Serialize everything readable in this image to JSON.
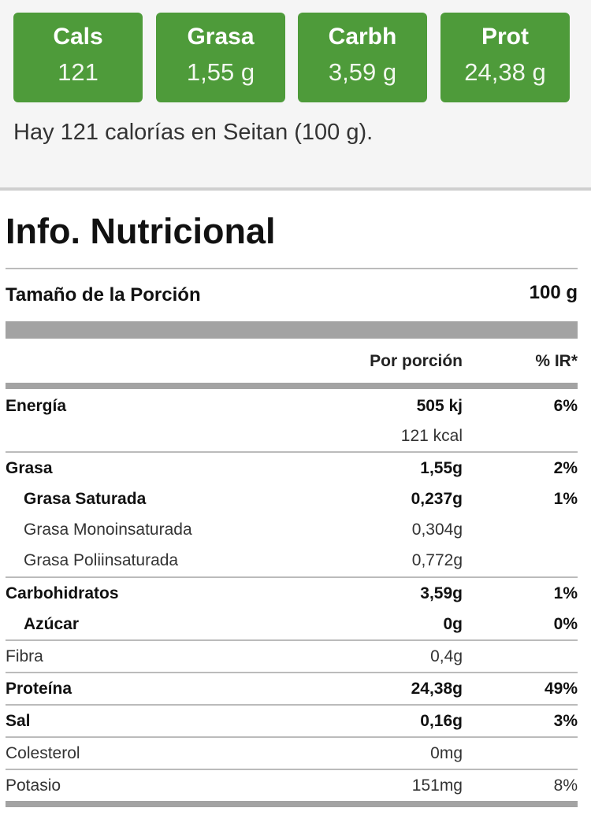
{
  "macros": [
    {
      "label": "Cals",
      "value": "121"
    },
    {
      "label": "Grasa",
      "value": "1,55 g"
    },
    {
      "label": "Carbh",
      "value": "3,59 g"
    },
    {
      "label": "Prot",
      "value": "24,38 g"
    }
  ],
  "summary": "Hay 121 calorías en Seitan (100 g).",
  "nutrition": {
    "title": "Info. Nutricional",
    "serving_label": "Tamaño de la Porción",
    "serving_value": "100 g",
    "col_per_serving": "Por porción",
    "col_ri": "% IR*",
    "rows": [
      {
        "name": "Energía",
        "value": "505 kj",
        "pct": "6%"
      },
      {
        "name": "",
        "value": "121 kcal",
        "pct": ""
      },
      {
        "name": "Grasa",
        "value": "1,55g",
        "pct": "2%"
      },
      {
        "name": "Grasa Saturada",
        "value": "0,237g",
        "pct": "1%"
      },
      {
        "name": "Grasa Monoinsaturada",
        "value": "0,304g",
        "pct": ""
      },
      {
        "name": "Grasa Poliinsaturada",
        "value": "0,772g",
        "pct": ""
      },
      {
        "name": "Carbohidratos",
        "value": "3,59g",
        "pct": "1%"
      },
      {
        "name": "Azúcar",
        "value": "0g",
        "pct": "0%"
      },
      {
        "name": "Fibra",
        "value": "0,4g",
        "pct": ""
      },
      {
        "name": "Proteína",
        "value": "24,38g",
        "pct": "49%"
      },
      {
        "name": "Sal",
        "value": "0,16g",
        "pct": "3%"
      },
      {
        "name": "Colesterol",
        "value": "0mg",
        "pct": ""
      },
      {
        "name": "Potasio",
        "value": "151mg",
        "pct": "8%"
      }
    ]
  }
}
